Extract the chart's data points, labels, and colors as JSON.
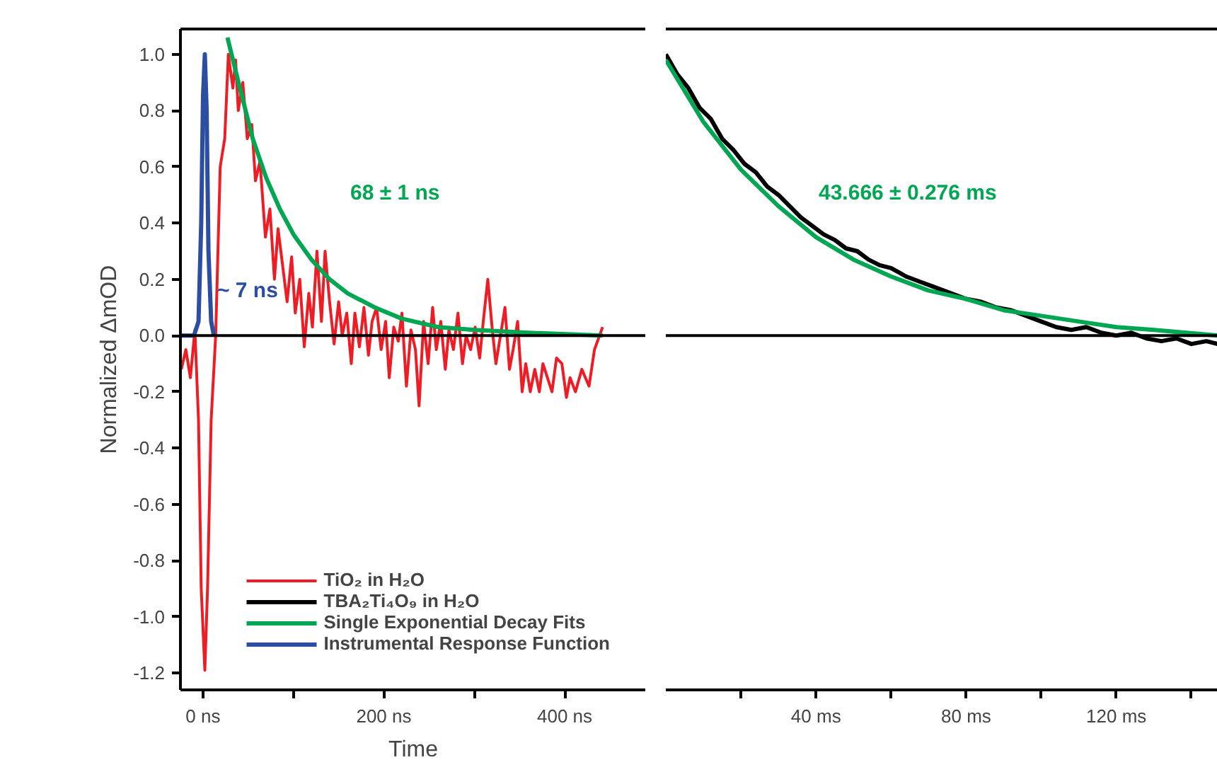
{
  "chart_data": [
    {
      "type": "line",
      "xlabel": "Time",
      "ylabel": "Normalized ΔmOD",
      "xlim": [
        -25,
        490
      ],
      "ylim": [
        -1.26,
        1.09
      ],
      "xticks": [
        {
          "value": 0,
          "label": "0 ns"
        },
        {
          "value": 100,
          "label": null
        },
        {
          "value": 200,
          "label": "200 ns"
        },
        {
          "value": 300,
          "label": null
        },
        {
          "value": 400,
          "label": "400 ns"
        }
      ],
      "yticks": [
        -1.2,
        {
          "value": -1,
          "label": "-1.0"
        },
        -0.8,
        -0.6,
        -0.4,
        -0.2,
        {
          "value": 0,
          "label": "0.0"
        },
        0.2,
        0.4,
        0.6,
        0.8,
        {
          "value": 1,
          "label": "1.0"
        }
      ],
      "grid": false,
      "legend": "bottom right",
      "ref_lines": [
        {
          "axis": "y",
          "value": 0,
          "color": "#000000"
        }
      ],
      "annotations": [
        "68 ± 1 ns",
        "~ 7 ns"
      ],
      "series": [
        {
          "name": "TiO₂ in H₂O",
          "color": "#ee1c24",
          "x": [
            -24,
            -19,
            -14,
            -9,
            -5,
            -2,
            2,
            5,
            9,
            14,
            19,
            24,
            28,
            33,
            36,
            39,
            44,
            49,
            54,
            58,
            63,
            69,
            74,
            79,
            83,
            88,
            93,
            98,
            102,
            107,
            112,
            117,
            121,
            126,
            131,
            135,
            140,
            145,
            150,
            154,
            159,
            164,
            168,
            173,
            178,
            183,
            187,
            192,
            197,
            202,
            206,
            211,
            216,
            220,
            225,
            230,
            235,
            239,
            244,
            249,
            254,
            258,
            263,
            268,
            272,
            277,
            282,
            287,
            291,
            296,
            301,
            306,
            310,
            315,
            320,
            324,
            329,
            334,
            339,
            343,
            348,
            353,
            357,
            362,
            367,
            372,
            376,
            381,
            386,
            391,
            397,
            402,
            406,
            412,
            419,
            427,
            433,
            442
          ],
          "values": [
            -0.12,
            -0.05,
            -0.15,
            0.02,
            -0.3,
            -0.9,
            -1.19,
            -0.9,
            -0.3,
            0.0,
            0.6,
            0.7,
            1.0,
            0.88,
            0.98,
            0.8,
            0.9,
            0.7,
            0.75,
            0.55,
            0.62,
            0.35,
            0.45,
            0.2,
            0.38,
            0.25,
            0.12,
            0.28,
            0.08,
            0.2,
            -0.04,
            0.15,
            0.03,
            0.3,
            0.05,
            0.3,
            0.12,
            -0.03,
            0.12,
            0.0,
            0.08,
            -0.1,
            0.08,
            -0.04,
            0.1,
            -0.07,
            0.05,
            0.1,
            -0.05,
            0.05,
            -0.15,
            0.03,
            -0.02,
            0.08,
            -0.18,
            0.02,
            -0.05,
            -0.25,
            0.05,
            -0.1,
            0.1,
            -0.05,
            0.05,
            -0.12,
            0.02,
            -0.05,
            0.08,
            -0.1,
            0.0,
            -0.05,
            0.03,
            -0.08,
            0.05,
            0.2,
            0.02,
            -0.1,
            0.0,
            0.1,
            -0.12,
            -0.05,
            0.05,
            -0.2,
            -0.1,
            -0.2,
            -0.12,
            -0.2,
            -0.1,
            -0.15,
            -0.2,
            -0.08,
            -0.1,
            -0.22,
            -0.15,
            -0.2,
            -0.12,
            -0.18,
            -0.05,
            0.03
          ]
        },
        {
          "name": "Single Exponential Decay Fits",
          "color": "#00a651",
          "x": [
            27,
            40,
            55,
            70,
            85,
            100,
            120,
            140,
            160,
            190,
            220,
            260,
            300,
            360,
            442
          ],
          "values": [
            1.06,
            0.89,
            0.7,
            0.56,
            0.45,
            0.36,
            0.27,
            0.2,
            0.15,
            0.1,
            0.06,
            0.03,
            0.02,
            0.01,
            0.0
          ]
        },
        {
          "name": "Instrumental Response Function",
          "color": "#2b4ea2",
          "x": [
            -24,
            -10,
            -5,
            -2,
            0,
            2,
            4,
            6,
            9,
            12
          ],
          "values": [
            0,
            0,
            0.05,
            0.4,
            0.85,
            1.0,
            0.8,
            0.3,
            0.05,
            0
          ]
        }
      ]
    },
    {
      "type": "line",
      "xlim": [
        0,
        147
      ],
      "ylim": [
        -1.26,
        1.09
      ],
      "tick_labels": "x",
      "xticks": [
        {
          "value": 20,
          "label": null
        },
        {
          "value": 40,
          "label": "40 ms"
        },
        {
          "value": 60,
          "label": null
        },
        {
          "value": 80,
          "label": "80 ms"
        },
        {
          "value": 100,
          "label": null
        },
        {
          "value": 120,
          "label": "120 ms"
        },
        {
          "value": 140,
          "label": null
        }
      ],
      "grid": false,
      "legend": "bottom left",
      "ref_lines": [
        {
          "axis": "y",
          "value": 0,
          "color": "#000000"
        }
      ],
      "annotations": [
        "43.666 ± 0.276 ms"
      ],
      "series": [
        {
          "name": "TBA₂Ti₄O₉ in H₂O",
          "color": "#000000",
          "x": [
            0,
            3,
            6,
            9,
            12,
            15,
            18,
            21,
            24,
            27,
            30,
            33,
            36,
            39,
            42,
            45,
            48,
            51,
            54,
            57,
            60,
            64,
            68,
            72,
            76,
            80,
            84,
            88,
            92,
            96,
            100,
            104,
            108,
            112,
            116,
            120,
            124,
            128,
            132,
            136,
            140,
            144,
            147
          ],
          "values": [
            1.0,
            0.93,
            0.88,
            0.81,
            0.77,
            0.7,
            0.66,
            0.61,
            0.58,
            0.53,
            0.5,
            0.46,
            0.42,
            0.39,
            0.36,
            0.34,
            0.31,
            0.3,
            0.27,
            0.25,
            0.24,
            0.21,
            0.19,
            0.17,
            0.15,
            0.13,
            0.12,
            0.1,
            0.09,
            0.07,
            0.05,
            0.03,
            0.02,
            0.03,
            0.01,
            0.0,
            0.01,
            -0.01,
            -0.02,
            -0.01,
            -0.03,
            -0.02,
            -0.03
          ]
        },
        {
          "name": "Single Exponential Decay Fits",
          "color": "#00a651",
          "x": [
            0,
            10,
            20,
            30,
            40,
            50,
            60,
            70,
            80,
            90,
            100,
            110,
            120,
            130,
            147
          ],
          "values": [
            0.98,
            0.76,
            0.59,
            0.46,
            0.35,
            0.27,
            0.21,
            0.16,
            0.13,
            0.09,
            0.07,
            0.05,
            0.03,
            0.02,
            0.0
          ]
        }
      ]
    }
  ]
}
